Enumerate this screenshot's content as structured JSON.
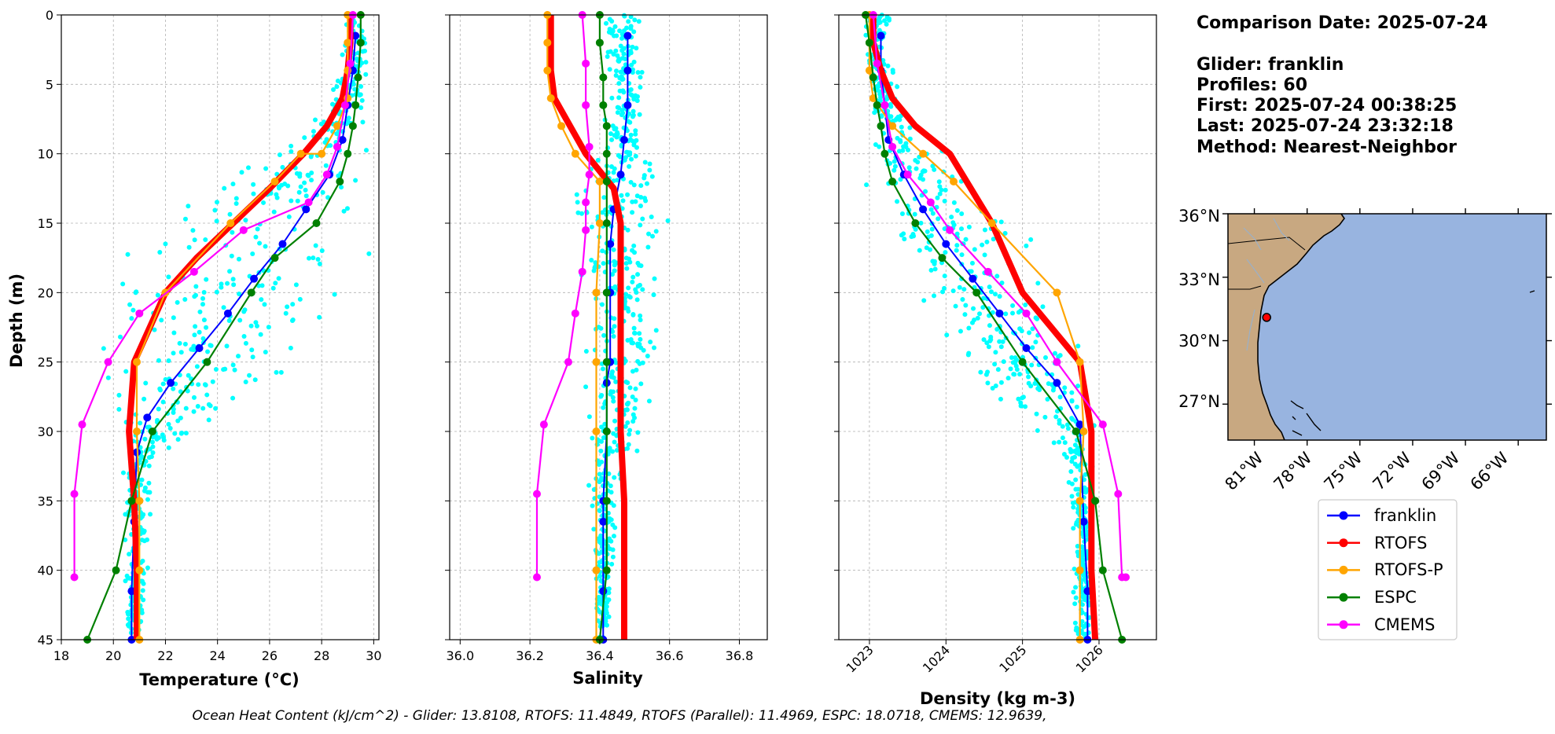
{
  "info": {
    "comparison_date": "Comparison Date: 2025-07-24",
    "glider": "Glider: franklin",
    "profiles": "Profiles: 60",
    "first": "First: 2025-07-24 00:38:25",
    "last": "Last: 2025-07-24 23:32:18",
    "method": "Method: Nearest-Neighbor"
  },
  "footer": "Ocean Heat Content (kJ/cm^2) - Glider: 13.8108,  RTOFS: 11.4849,  RTOFS (Parallel): 11.4969,  ESPC: 18.0718,  CMEMS: 12.9639,",
  "colors": {
    "glider_scatter": "#00ffff",
    "franklin": "#0000ff",
    "RTOFS": "#ff0000",
    "RTOFS-P": "#ffa500",
    "ESPC": "#008000",
    "CMEMS": "#ff00ff",
    "land": "#c8a881",
    "ocean": "#98b4e0",
    "grid": "#b0b0b0"
  },
  "map": {
    "lat_labels": [
      "36°N",
      "33°N",
      "30°N",
      "27°N"
    ],
    "lon_labels": [
      "81°W",
      "78°W",
      "75°W",
      "72°W",
      "69°W",
      "66°W"
    ],
    "glider_position": {
      "lon": -80.3,
      "lat": 31.1
    }
  },
  "chart_data": [
    {
      "type": "line",
      "panel": "temperature",
      "xlabel": "Temperature (°C)",
      "ylabel": "Depth (m)",
      "xlim": [
        18,
        30.2
      ],
      "ylim": [
        45,
        0
      ],
      "xticks": [
        18,
        20,
        22,
        24,
        26,
        28,
        30
      ],
      "yticks": [
        0,
        5,
        10,
        15,
        20,
        25,
        30,
        35,
        40,
        45
      ],
      "grid": true,
      "scatter_band": [
        [
          0,
          28.9,
          29.6
        ],
        [
          4,
          28.8,
          29.7
        ],
        [
          6,
          28.3,
          29.6
        ],
        [
          8,
          27.6,
          29.5
        ],
        [
          10,
          26.2,
          29.4
        ],
        [
          12,
          24.4,
          29.2
        ],
        [
          14,
          23.0,
          29.1
        ],
        [
          16,
          22.0,
          29.0
        ],
        [
          18,
          21.3,
          28.6
        ],
        [
          20,
          20.9,
          28.0
        ],
        [
          22,
          20.8,
          27.4
        ],
        [
          24,
          20.7,
          26.8
        ],
        [
          26,
          20.6,
          26.0
        ],
        [
          28,
          20.6,
          24.8
        ],
        [
          30,
          20.5,
          23.0
        ],
        [
          32,
          20.5,
          21.6
        ],
        [
          36,
          20.5,
          21.3
        ],
        [
          40,
          20.5,
          21.2
        ],
        [
          45,
          20.5,
          21.1
        ]
      ],
      "series": [
        {
          "name": "franklin",
          "x": [
            29.3,
            29.2,
            29.0,
            28.8,
            28.3,
            27.4,
            26.5,
            25.4,
            24.4,
            23.3,
            22.2,
            21.3,
            20.9,
            20.8,
            20.7,
            20.7
          ],
          "y": [
            1.5,
            4,
            6.5,
            9,
            11.5,
            14,
            16.5,
            19,
            21.5,
            24,
            26.5,
            29,
            31.5,
            36.5,
            41.5,
            45
          ]
        },
        {
          "name": "RTOFS",
          "x": [
            29.1,
            29.1,
            29.0,
            28.8,
            28.2,
            27.3,
            26.0,
            24.6,
            23.2,
            22.0,
            20.8,
            20.6,
            20.8,
            20.9,
            20.9,
            20.9
          ],
          "y": [
            0,
            2,
            4,
            6,
            8,
            10,
            12.5,
            15,
            17.5,
            20,
            25,
            30,
            35,
            40,
            41,
            45
          ]
        },
        {
          "name": "RTOFS-P",
          "x": [
            29.0,
            29.0,
            29.0,
            29.0,
            28.6,
            28.0,
            27.2,
            26.2,
            24.5,
            22.0,
            20.9,
            20.9,
            21.0,
            21.0,
            21.0
          ],
          "y": [
            0,
            2,
            4,
            6,
            8,
            10,
            10,
            12,
            15,
            20,
            25,
            30,
            35,
            40,
            45
          ]
        },
        {
          "name": "ESPC",
          "x": [
            29.5,
            29.5,
            29.4,
            29.3,
            29.2,
            29.0,
            28.7,
            27.8,
            26.2,
            25.3,
            23.6,
            21.5,
            20.7,
            20.1,
            19.0
          ],
          "y": [
            0,
            2,
            4.5,
            6.5,
            8,
            10,
            12,
            15,
            17.5,
            20,
            25,
            30,
            35,
            40,
            45
          ]
        },
        {
          "name": "CMEMS",
          "x": [
            29.2,
            29.1,
            28.9,
            28.6,
            28.2,
            27.5,
            25.0,
            23.1,
            21.0,
            19.8,
            18.8,
            18.5,
            18.5
          ],
          "y": [
            0,
            3.5,
            6.5,
            9.5,
            11.5,
            13.5,
            15.5,
            18.5,
            21.5,
            25,
            29.5,
            34.5,
            40.5
          ]
        }
      ]
    },
    {
      "type": "line",
      "panel": "salinity",
      "xlabel": "Salinity",
      "xlim": [
        35.97,
        36.88
      ],
      "ylim": [
        45,
        0
      ],
      "xticks": [
        36.0,
        36.2,
        36.4,
        36.6,
        36.8
      ],
      "tick_labels": [
        "36.0",
        "36.2",
        "36.4",
        "36.6",
        "36.8"
      ],
      "yticks": [
        0,
        5,
        10,
        15,
        20,
        25,
        30,
        35,
        40,
        45
      ],
      "grid": true,
      "scatter_band": [
        [
          0,
          36.43,
          36.52
        ],
        [
          5,
          36.43,
          36.51
        ],
        [
          10,
          36.42,
          36.52
        ],
        [
          13,
          36.33,
          36.56
        ],
        [
          16,
          36.35,
          36.55
        ],
        [
          20,
          36.38,
          36.54
        ],
        [
          25,
          36.38,
          36.56
        ],
        [
          30,
          36.38,
          36.5
        ],
        [
          35,
          36.38,
          36.45
        ],
        [
          40,
          36.39,
          36.43
        ],
        [
          45,
          36.4,
          36.42
        ]
      ],
      "series": [
        {
          "name": "franklin",
          "x": [
            36.48,
            36.48,
            36.48,
            36.47,
            36.46,
            36.44,
            36.43,
            36.43,
            36.43,
            36.42,
            36.42,
            36.41,
            36.41,
            36.41,
            36.41
          ],
          "y": [
            1.5,
            4,
            6.5,
            9,
            11.5,
            14,
            16.5,
            20,
            25,
            26.5,
            30,
            35,
            36.5,
            41.5,
            45
          ]
        },
        {
          "name": "RTOFS",
          "x": [
            36.26,
            36.26,
            36.27,
            36.36,
            36.44,
            36.46,
            36.46,
            36.46,
            36.46,
            36.47,
            36.47,
            36.47
          ],
          "y": [
            0,
            4,
            6,
            10,
            12.5,
            15,
            20,
            25,
            30,
            35,
            40,
            45
          ]
        },
        {
          "name": "RTOFS-P",
          "x": [
            36.25,
            36.25,
            36.25,
            36.26,
            36.29,
            36.33,
            36.4,
            36.4,
            36.39,
            36.39,
            36.39,
            36.39,
            36.39
          ],
          "y": [
            0,
            2,
            4,
            6,
            8,
            10,
            12,
            15,
            20,
            25,
            30,
            40,
            45
          ]
        },
        {
          "name": "ESPC",
          "x": [
            36.4,
            36.4,
            36.41,
            36.41,
            36.42,
            36.42,
            36.42,
            36.42,
            36.42,
            36.42,
            36.42,
            36.42,
            36.42,
            36.4
          ],
          "y": [
            0,
            2,
            4.5,
            6.5,
            8,
            10,
            12,
            15,
            20,
            25,
            30,
            35,
            40,
            45
          ]
        },
        {
          "name": "CMEMS",
          "x": [
            36.35,
            36.36,
            36.36,
            36.37,
            36.37,
            36.36,
            36.36,
            36.35,
            36.33,
            36.31,
            36.24,
            36.22,
            36.22
          ],
          "y": [
            0,
            3.5,
            6.5,
            9.5,
            11.5,
            13.5,
            15.5,
            18.5,
            21.5,
            25,
            29.5,
            34.5,
            40.5
          ]
        }
      ]
    },
    {
      "type": "line",
      "panel": "density",
      "xlabel": "Density (kg m-3)",
      "xlim": [
        1022.6,
        1026.75
      ],
      "ylim": [
        45,
        0
      ],
      "xticks": [
        1023,
        1024,
        1025,
        1026
      ],
      "tick_labels": [
        "1023",
        "1024",
        "1025",
        "1026"
      ],
      "yticks": [
        0,
        5,
        10,
        15,
        20,
        25,
        30,
        35,
        40,
        45
      ],
      "grid": true,
      "scatter_band": [
        [
          0,
          1022.95,
          1023.25
        ],
        [
          5,
          1023.0,
          1023.3
        ],
        [
          7,
          1023.0,
          1023.4
        ],
        [
          10,
          1023.1,
          1023.9
        ],
        [
          13,
          1023.1,
          1024.5
        ],
        [
          16,
          1023.3,
          1024.9
        ],
        [
          20,
          1023.7,
          1025.1
        ],
        [
          24,
          1024.2,
          1025.5
        ],
        [
          28,
          1024.7,
          1025.9
        ],
        [
          30,
          1025.3,
          1025.9
        ],
        [
          35,
          1025.7,
          1025.9
        ],
        [
          45,
          1025.7,
          1025.9
        ]
      ],
      "series": [
        {
          "name": "franklin",
          "x": [
            1023.15,
            1023.15,
            1023.2,
            1023.25,
            1023.45,
            1023.7,
            1024.0,
            1024.35,
            1024.7,
            1025.05,
            1025.45,
            1025.75,
            1025.8,
            1025.85,
            1025.85
          ],
          "y": [
            1.5,
            4,
            6.5,
            9,
            11.5,
            14,
            16.5,
            19,
            21.5,
            24,
            26.5,
            29.5,
            36.5,
            41.5,
            45
          ]
        },
        {
          "name": "RTOFS",
          "x": [
            1023.05,
            1023.05,
            1023.15,
            1023.3,
            1023.6,
            1024.05,
            1024.6,
            1025.0,
            1025.75,
            1025.9,
            1025.9,
            1025.9,
            1025.95
          ],
          "y": [
            0,
            2,
            4,
            6,
            8,
            10,
            15,
            20,
            25,
            30,
            35,
            40,
            45
          ]
        },
        {
          "name": "RTOFS-P",
          "x": [
            1023.0,
            1023.0,
            1023.0,
            1023.05,
            1023.3,
            1023.7,
            1024.1,
            1024.6,
            1025.45,
            1025.75,
            1025.8,
            1025.75,
            1025.75,
            1025.75
          ],
          "y": [
            0,
            2,
            4,
            6,
            8,
            10,
            12,
            15,
            20,
            25,
            30,
            35,
            40,
            45
          ]
        },
        {
          "name": "ESPC",
          "x": [
            1022.95,
            1023.0,
            1023.05,
            1023.1,
            1023.15,
            1023.2,
            1023.3,
            1023.6,
            1023.95,
            1024.4,
            1025.0,
            1025.7,
            1025.95,
            1026.05,
            1026.3
          ],
          "y": [
            0,
            2,
            4.5,
            6.5,
            8,
            10,
            12,
            15,
            17.5,
            20,
            25,
            30,
            35,
            40,
            45
          ]
        },
        {
          "name": "CMEMS",
          "x": [
            1023.05,
            1023.1,
            1023.2,
            1023.3,
            1023.5,
            1023.8,
            1024.05,
            1024.55,
            1025.05,
            1025.45,
            1026.05,
            1026.25,
            1026.3,
            1026.35
          ],
          "y": [
            0,
            3.5,
            6.5,
            9.5,
            11.5,
            13.5,
            15.5,
            18.5,
            21.5,
            25,
            29.5,
            34.5,
            40.5,
            40.5
          ]
        }
      ]
    }
  ],
  "legend": {
    "placement": "bottom-right",
    "entries": [
      "franklin",
      "RTOFS",
      "RTOFS-P",
      "ESPC",
      "CMEMS"
    ]
  }
}
